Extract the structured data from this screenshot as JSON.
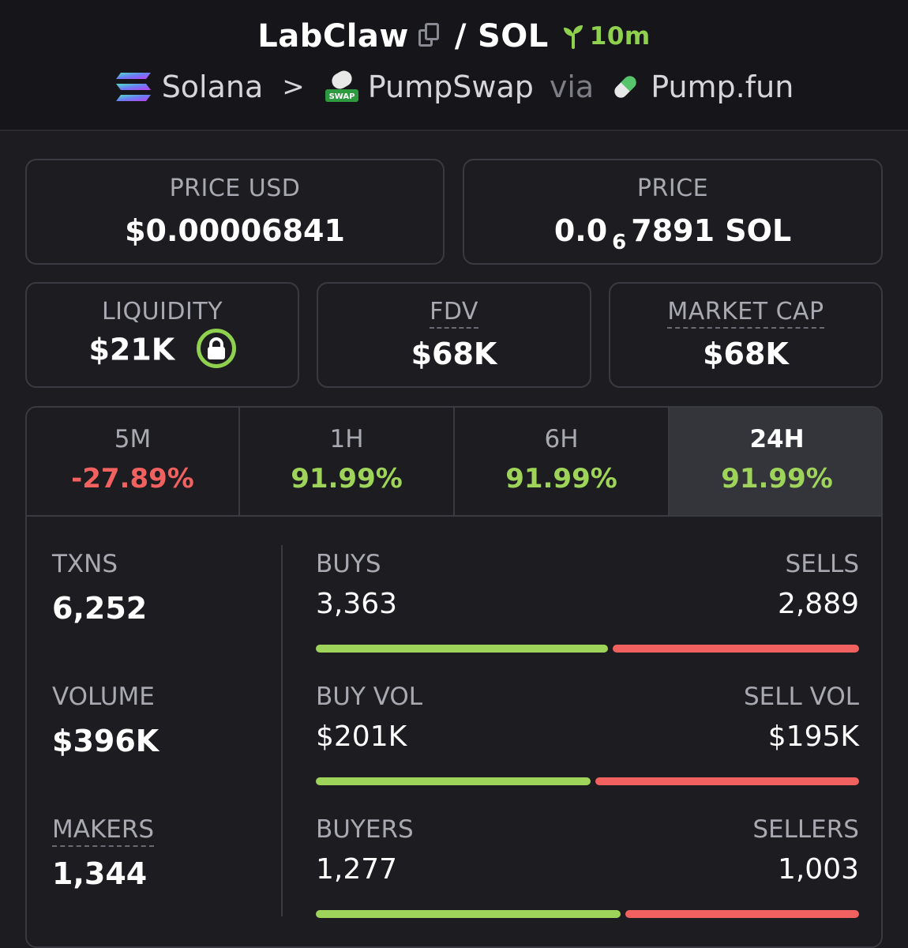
{
  "header": {
    "token": "LabClaw",
    "separator": "/",
    "quote": "SOL",
    "age": "10m",
    "icons": {
      "copy": "copy-icon",
      "age": "sprout-icon"
    }
  },
  "breadcrumb": {
    "chain": "Solana",
    "dex": "PumpSwap",
    "dex_badge": "SWAP",
    "via": "via",
    "launchpad": "Pump.fun"
  },
  "price_usd": {
    "label": "PRICE USD",
    "value": "$0.00006841"
  },
  "price_native": {
    "label": "PRICE",
    "prefix": "0.0",
    "zeros": "6",
    "digits": "7891",
    "unit": "SOL"
  },
  "liquidity": {
    "label": "LIQUIDITY",
    "value": "$21K",
    "icon": "lock-icon"
  },
  "fdv": {
    "label": "FDV",
    "value": "$68K"
  },
  "market_cap": {
    "label": "MARKET CAP",
    "value": "$68K"
  },
  "timeframes": [
    {
      "label": "5M",
      "change": "-27.89%",
      "status": "negative"
    },
    {
      "label": "1H",
      "change": "91.99%",
      "status": "positive"
    },
    {
      "label": "6H",
      "change": "91.99%",
      "status": "positive"
    },
    {
      "label": "24H",
      "change": "91.99%",
      "status": "positive",
      "active": true
    }
  ],
  "stats": {
    "txns": {
      "label": "TXNS",
      "value": "6,252"
    },
    "volume": {
      "label": "VOLUME",
      "value": "$396K"
    },
    "makers": {
      "label": "MAKERS",
      "value": "1,344"
    }
  },
  "splits": {
    "txns": {
      "left_label": "BUYS",
      "left_value": "3,363",
      "right_label": "SELLS",
      "right_value": "2,889"
    },
    "volume": {
      "left_label": "BUY VOL",
      "left_value": "$201K",
      "right_label": "SELL VOL",
      "right_value": "$195K"
    },
    "makers": {
      "left_label": "BUYERS",
      "left_value": "1,277",
      "right_label": "SELLERS",
      "right_value": "1,003"
    }
  },
  "colors": {
    "positive": "#9fd45a",
    "negative": "#f0615f",
    "background": "#1c1c21",
    "header": "#16161a"
  }
}
